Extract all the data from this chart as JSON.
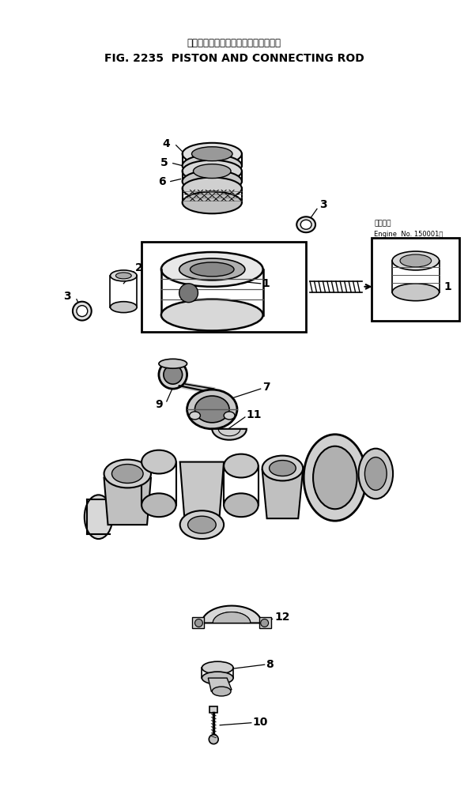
{
  "title_japanese": "ピストンおよびコネクティングロッド",
  "title_english": "FIG. 2235  PISTON AND CONNECTING ROD",
  "bg_color": "#ffffff",
  "text_color": "#000000",
  "fig_width": 5.92,
  "fig_height": 10.15,
  "dpi": 100,
  "inset_label_japanese": "適用号機",
  "inset_label_english": "Engine  No. 150001～"
}
